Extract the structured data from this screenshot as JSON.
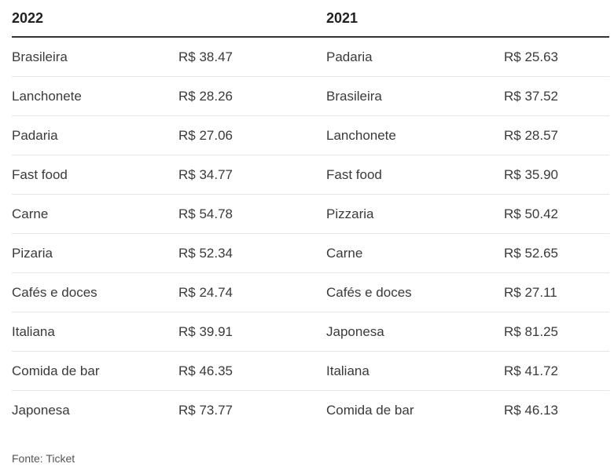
{
  "table": {
    "headers": [
      "2022",
      "",
      "2021",
      ""
    ],
    "rows": [
      [
        "Brasileira",
        "R$ 38.47",
        "Padaria",
        "R$ 25.63"
      ],
      [
        "Lanchonete",
        "R$ 28.26",
        "Brasileira",
        "R$ 37.52"
      ],
      [
        "Padaria",
        "R$ 27.06",
        "Lanchonete",
        "R$ 28.57"
      ],
      [
        "Fast food",
        "R$ 34.77",
        "Fast food",
        "R$ 35.90"
      ],
      [
        "Carne",
        "R$ 54.78",
        "Pizzaria",
        "R$ 50.42"
      ],
      [
        "Pizaria",
        "R$ 52.34",
        "Carne",
        "R$ 52.65"
      ],
      [
        "Cafés e doces",
        "R$ 24.74",
        "Cafés e doces",
        "R$ 27.11"
      ],
      [
        "Italiana",
        "R$ 39.91",
        "Japonesa",
        "R$ 81.25"
      ],
      [
        "Comida de bar",
        "R$ 46.35",
        "Italiana",
        "R$ 41.72"
      ],
      [
        "Japonesa",
        "R$ 73.77",
        "Comida de bar",
        "R$ 46.13"
      ]
    ]
  },
  "source": "Fonte: Ticket"
}
